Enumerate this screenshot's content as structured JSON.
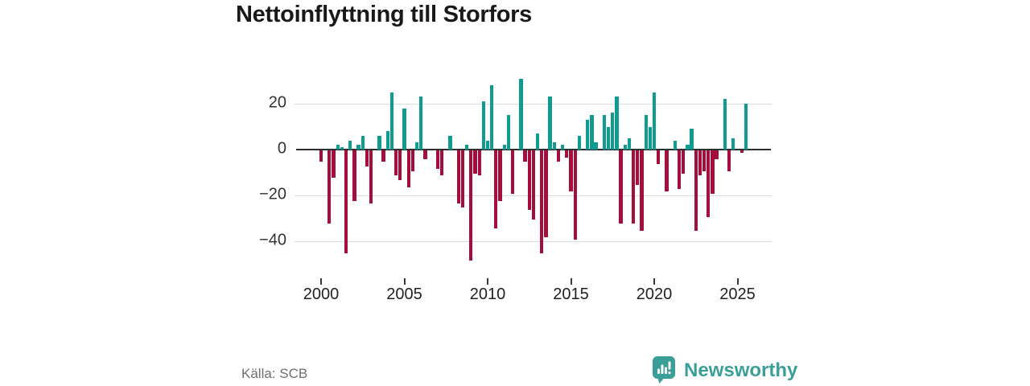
{
  "title": "Nettoinflyttning till Storfors",
  "source": "Källa: SCB",
  "branding": {
    "name": "Newsworthy"
  },
  "colors": {
    "positive": "#0f9a92",
    "negative": "#a50d3d",
    "axis": "#2e2e2e",
    "grid": "#dcdcdc",
    "brand_teal": "#3b9f99",
    "title_text": "#191919",
    "tick_text": "#222222",
    "source_text": "#6e6e6e"
  },
  "chart_data": {
    "type": "bar",
    "title": "Nettoinflyttning till Storfors",
    "frequency": "quarterly",
    "start_period": "2000-Q1",
    "end_period": "2025-Q3",
    "values": [
      -5,
      0,
      -32,
      -12,
      2,
      1,
      -45,
      4,
      -22,
      2,
      6,
      -7,
      -23,
      0,
      6,
      -5,
      8,
      25,
      -11,
      -13,
      18,
      -16,
      -9,
      3,
      23,
      -4,
      0,
      0,
      -8,
      -11,
      0,
      6,
      0,
      -23,
      -25,
      2,
      -48,
      -10,
      -11,
      21,
      4,
      28,
      -34,
      -22,
      2,
      15,
      -19,
      0,
      31,
      -5,
      -26,
      -30,
      7,
      -45,
      -38,
      23,
      3,
      -5,
      2,
      -3,
      -18,
      -39,
      6,
      0,
      13,
      15,
      3,
      0,
      15,
      10,
      16,
      23,
      -32,
      2,
      5,
      -32,
      -15,
      -35,
      15,
      10,
      25,
      -6,
      0,
      -18,
      0,
      4,
      -17,
      -10,
      2,
      9,
      -35,
      -11,
      -9,
      -29,
      -19,
      -4,
      0,
      22,
      -9,
      5,
      0,
      -1,
      20
    ],
    "x_tick_years": [
      2000,
      2005,
      2010,
      2015,
      2020,
      2025
    ],
    "x_tick_labels": [
      "2000",
      "2005",
      "2010",
      "2015",
      "2020",
      "2025"
    ],
    "y_ticks": [
      20,
      0,
      -20,
      -40
    ],
    "y_tick_labels": [
      "20",
      "0",
      "−20",
      "−40"
    ],
    "ylim": [
      -52,
      34
    ],
    "grid": true,
    "legend": false,
    "bar_color_rule": "teal for positive values, crimson for negative values"
  }
}
